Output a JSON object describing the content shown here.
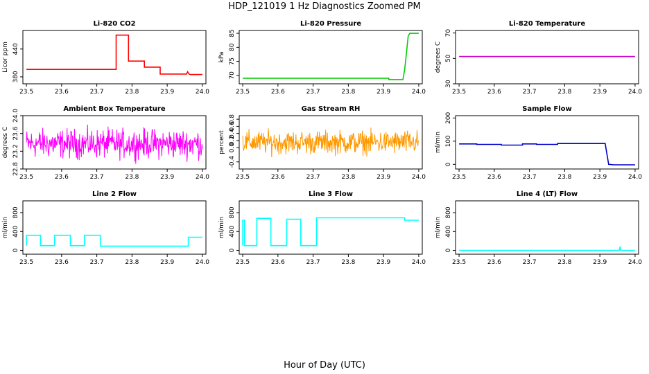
{
  "figure": {
    "title": "HDP_121019  1 Hz Diagnostics Zoomed PM",
    "xlabel": "Hour of Day (UTC)"
  },
  "chart_data": [
    {
      "type": "line",
      "title": "Li-820 CO2",
      "ylabel": "Licor ppm",
      "color": "#ff0000",
      "xlim": [
        23.49,
        24.01
      ],
      "ylim": [
        365,
        480
      ],
      "xticks": [
        "23.5",
        "23.6",
        "23.7",
        "23.8",
        "23.9",
        "24.0"
      ],
      "yticks": [
        "380",
        "440"
      ],
      "ytick_values": [
        380,
        440
      ],
      "x": [
        23.5,
        23.755,
        23.755,
        23.79,
        23.79,
        23.835,
        23.835,
        23.88,
        23.88,
        23.955,
        23.958,
        23.962,
        23.965,
        24.0
      ],
      "y": [
        396,
        396,
        470,
        470,
        414,
        414,
        401,
        401,
        386,
        386,
        391,
        386,
        385,
        385
      ]
    },
    {
      "type": "line",
      "title": "Li-820 Pressure",
      "ylabel": "kPa",
      "color": "#00cc00",
      "xlim": [
        23.49,
        24.01
      ],
      "ylim": [
        67,
        86
      ],
      "xticks": [
        "23.5",
        "23.6",
        "23.7",
        "23.8",
        "23.9",
        "24.0"
      ],
      "yticks": [
        "70",
        "75",
        "80",
        "85"
      ],
      "ytick_values": [
        70,
        75,
        80,
        85
      ],
      "x": [
        23.5,
        23.915,
        23.915,
        23.955,
        23.96,
        23.965,
        23.97,
        23.975,
        24.0
      ],
      "y": [
        69,
        69,
        68.5,
        68.5,
        72,
        78,
        84,
        85,
        85
      ]
    },
    {
      "type": "line",
      "title": "Li-820 Temperature",
      "ylabel": "degrees C",
      "color": "#cc00cc",
      "xlim": [
        23.49,
        24.01
      ],
      "ylim": [
        30,
        72
      ],
      "xticks": [
        "23.5",
        "23.6",
        "23.7",
        "23.8",
        "23.9",
        "24.0"
      ],
      "yticks": [
        "30",
        "50",
        "70"
      ],
      "ytick_values": [
        30,
        50,
        70
      ],
      "x": [
        23.5,
        24.0
      ],
      "y": [
        51.5,
        51.5
      ]
    },
    {
      "type": "line",
      "title": "Ambient Box Temperature",
      "ylabel": "degrees C",
      "color": "#ff00ff",
      "xlim": [
        23.49,
        24.01
      ],
      "ylim": [
        22.8,
        24.0
      ],
      "xticks": [
        "23.5",
        "23.6",
        "23.7",
        "23.8",
        "23.9",
        "24.0"
      ],
      "yticks": [
        "22.8",
        "23.2",
        "23.6",
        "24.0"
      ],
      "ytick_values": [
        22.8,
        23.2,
        23.6,
        24.0
      ],
      "noise": {
        "x_start": 23.5,
        "x_end": 24.0,
        "mean": 23.37,
        "amplitude": 0.3
      },
      "x": [
        23.5,
        24.0
      ],
      "y": [
        23.37,
        23.37
      ]
    },
    {
      "type": "line",
      "title": "Gas Stream RH",
      "ylabel": "percent",
      "color": "#ff9900",
      "xlim": [
        23.49,
        24.01
      ],
      "ylim": [
        -0.6,
        0.9
      ],
      "xticks": [
        "23.5",
        "23.6",
        "23.7",
        "23.8",
        "23.9",
        "24.0"
      ],
      "yticks": [
        "-0.4",
        "0.0",
        "0.2",
        "0.4",
        "0.6",
        "0.8"
      ],
      "ytick_values": [
        -0.4,
        0.0,
        0.2,
        0.4,
        0.6,
        0.8
      ],
      "noise": {
        "x_start": 23.5,
        "x_end": 24.0,
        "mean": 0.15,
        "amplitude": 0.3
      },
      "x": [
        23.5,
        24.0
      ],
      "y": [
        0.15,
        0.15
      ]
    },
    {
      "type": "line",
      "title": "Sample Flow",
      "ylabel": "ml/min",
      "color": "#0000cc",
      "xlim": [
        23.49,
        24.01
      ],
      "ylim": [
        -20,
        210
      ],
      "xticks": [
        "23.5",
        "23.6",
        "23.7",
        "23.8",
        "23.9",
        "24.0"
      ],
      "yticks": [
        "0",
        "100",
        "200"
      ],
      "ytick_values": [
        0,
        100,
        200
      ],
      "x": [
        23.5,
        23.55,
        23.55,
        23.62,
        23.62,
        23.68,
        23.68,
        23.72,
        23.72,
        23.78,
        23.78,
        23.915,
        23.925,
        23.94,
        24.0
      ],
      "y": [
        88,
        88,
        86,
        86,
        83,
        83,
        88,
        88,
        86,
        86,
        90,
        90,
        0,
        -2,
        -2
      ]
    },
    {
      "type": "line",
      "title": "Line 2 Flow",
      "ylabel": "ml/min",
      "color": "#00ffff",
      "xlim": [
        23.49,
        24.01
      ],
      "ylim": [
        -80,
        1050
      ],
      "xticks": [
        "23.5",
        "23.6",
        "23.7",
        "23.8",
        "23.9",
        "24.0"
      ],
      "yticks": [
        "0",
        "400",
        "800"
      ],
      "ytick_values": [
        0,
        400,
        800
      ],
      "x": [
        23.5,
        23.5,
        23.54,
        23.54,
        23.58,
        23.58,
        23.625,
        23.625,
        23.665,
        23.665,
        23.71,
        23.71,
        23.96,
        23.96,
        24.0
      ],
      "y": [
        100,
        320,
        320,
        100,
        100,
        320,
        320,
        100,
        100,
        320,
        320,
        90,
        90,
        280,
        280
      ]
    },
    {
      "type": "line",
      "title": "Line 3 Flow",
      "ylabel": "ml/min",
      "color": "#00ffff",
      "xlim": [
        23.49,
        24.01
      ],
      "ylim": [
        -80,
        1050
      ],
      "xticks": [
        "23.5",
        "23.6",
        "23.7",
        "23.8",
        "23.9",
        "24.0"
      ],
      "yticks": [
        "0",
        "400",
        "800"
      ],
      "ytick_values": [
        0,
        400,
        800
      ],
      "x": [
        23.5,
        23.5,
        23.505,
        23.505,
        23.54,
        23.54,
        23.58,
        23.58,
        23.625,
        23.625,
        23.665,
        23.665,
        23.71,
        23.71,
        23.96,
        23.96,
        24.0
      ],
      "y": [
        100,
        640,
        640,
        100,
        100,
        680,
        680,
        100,
        100,
        660,
        660,
        100,
        100,
        690,
        690,
        640,
        640
      ]
    },
    {
      "type": "line",
      "title": "Line 4 (LT) Flow",
      "ylabel": "ml/min",
      "color": "#00ffff",
      "xlim": [
        23.49,
        24.01
      ],
      "ylim": [
        -80,
        1050
      ],
      "xticks": [
        "23.5",
        "23.6",
        "23.7",
        "23.8",
        "23.9",
        "24.0"
      ],
      "yticks": [
        "0",
        "400",
        "800"
      ],
      "ytick_values": [
        0,
        400,
        800
      ],
      "x": [
        23.5,
        23.955,
        23.957,
        23.959,
        23.961,
        24.0
      ],
      "y": [
        0,
        0,
        80,
        0,
        0,
        0
      ],
      "spike_color": "#00cccc"
    }
  ]
}
